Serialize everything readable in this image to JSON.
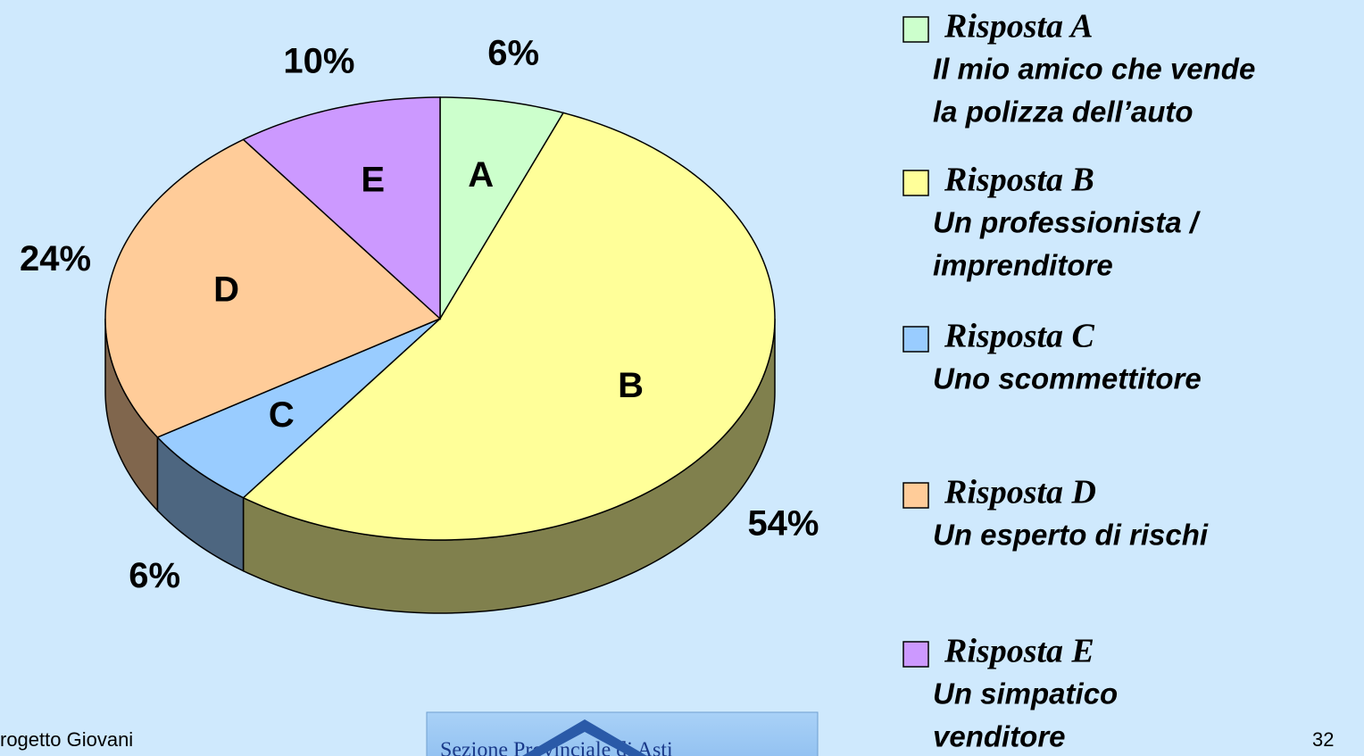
{
  "chart_data": {
    "type": "pie",
    "categories": [
      "A",
      "B",
      "C",
      "D",
      "E"
    ],
    "values": [
      6,
      54,
      6,
      24,
      10
    ],
    "value_labels": [
      "6%",
      "54%",
      "6%",
      "24%",
      "10%"
    ],
    "colors": [
      "#ccffcc",
      "#ffff99",
      "#99ccff",
      "#ffcc99",
      "#cc99ff"
    ],
    "legend": [
      {
        "name": "Risposta A",
        "description": [
          "Il mio amico che vende",
          "la polizza dell’auto"
        ]
      },
      {
        "name": "Risposta B",
        "description": [
          "Un professionista /",
          "imprenditore"
        ]
      },
      {
        "name": "Risposta C",
        "description": [
          "Uno scommettitore"
        ]
      },
      {
        "name": "Risposta D",
        "description": [
          "Un esperto di rischi"
        ]
      },
      {
        "name": "Risposta E",
        "description": [
          "Un simpatico",
          "venditore"
        ]
      }
    ]
  },
  "footer": {
    "left": "rogetto Giovani",
    "logo": "Sezione Provinciale di Asti",
    "page": "32"
  }
}
